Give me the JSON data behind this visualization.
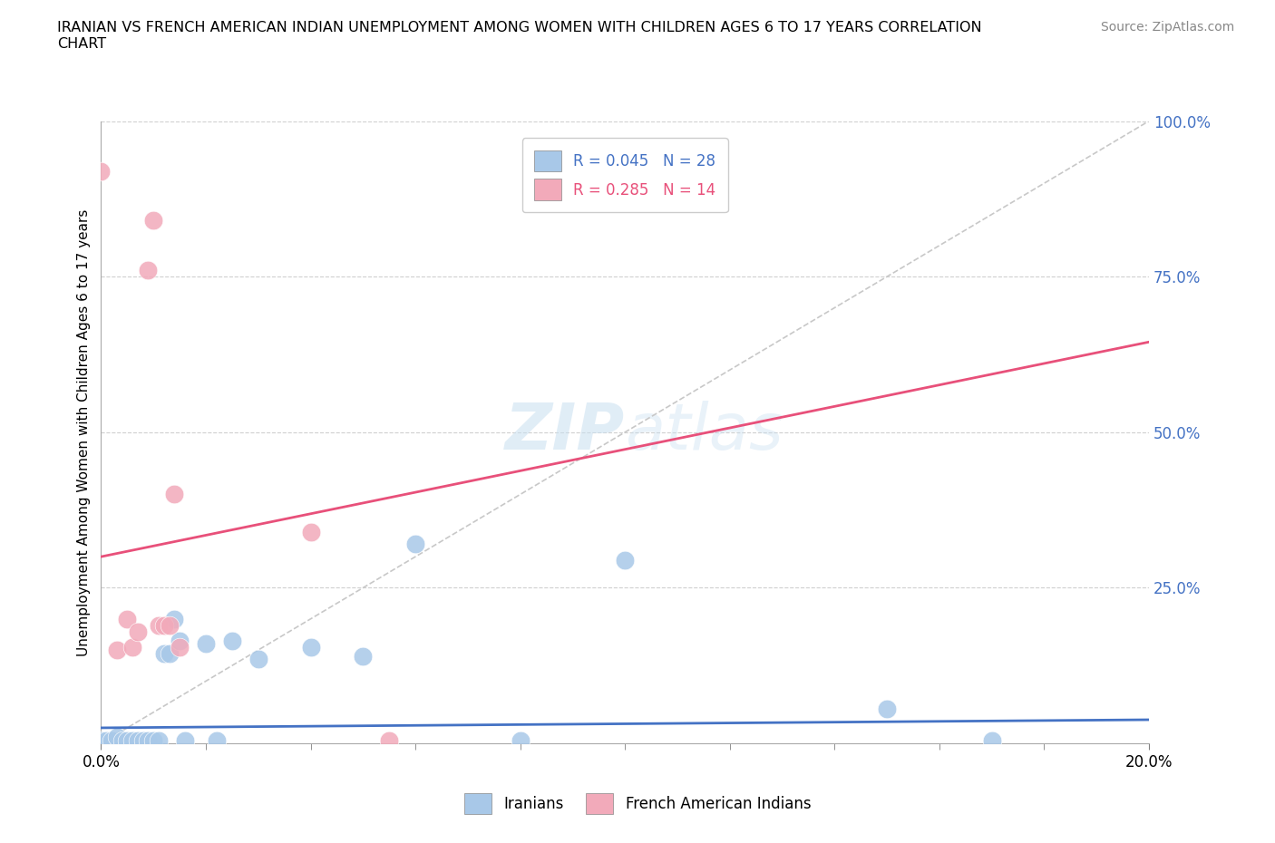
{
  "title": "IRANIAN VS FRENCH AMERICAN INDIAN UNEMPLOYMENT AMONG WOMEN WITH CHILDREN AGES 6 TO 17 YEARS CORRELATION\nCHART",
  "source": "Source: ZipAtlas.com",
  "ylabel": "Unemployment Among Women with Children Ages 6 to 17 years",
  "xmin": 0.0,
  "xmax": 0.2,
  "ymin": 0.0,
  "ymax": 1.0,
  "y_ticks": [
    0.0,
    0.25,
    0.5,
    0.75,
    1.0
  ],
  "y_tick_labels": [
    "",
    "25.0%",
    "50.0%",
    "75.0%",
    "100.0%"
  ],
  "watermark_zip": "ZIP",
  "watermark_atlas": "atlas",
  "legend_r1": "R = 0.045",
  "legend_n1": "N = 28",
  "legend_r2": "R = 0.285",
  "legend_n2": "N = 14",
  "color_iranian": "#a8c8e8",
  "color_french": "#f2aaba",
  "color_line_iranian": "#4472c4",
  "color_line_french": "#e8507a",
  "color_ref_line": "#c8c8c8",
  "iranians_x": [
    0.0,
    0.001,
    0.002,
    0.003,
    0.004,
    0.005,
    0.006,
    0.007,
    0.008,
    0.009,
    0.01,
    0.011,
    0.012,
    0.013,
    0.014,
    0.015,
    0.016,
    0.02,
    0.022,
    0.025,
    0.03,
    0.04,
    0.05,
    0.06,
    0.08,
    0.1,
    0.15,
    0.17
  ],
  "iranians_y": [
    0.005,
    0.005,
    0.005,
    0.01,
    0.005,
    0.005,
    0.005,
    0.005,
    0.005,
    0.005,
    0.005,
    0.005,
    0.145,
    0.145,
    0.2,
    0.165,
    0.005,
    0.16,
    0.005,
    0.165,
    0.135,
    0.155,
    0.14,
    0.32,
    0.005,
    0.295,
    0.055,
    0.005
  ],
  "french_x": [
    0.0,
    0.003,
    0.005,
    0.006,
    0.007,
    0.009,
    0.01,
    0.011,
    0.012,
    0.013,
    0.014,
    0.015,
    0.04,
    0.055
  ],
  "french_y": [
    0.92,
    0.15,
    0.2,
    0.155,
    0.18,
    0.76,
    0.84,
    0.19,
    0.19,
    0.19,
    0.4,
    0.155,
    0.34,
    0.005
  ],
  "french_line_x0": 0.0,
  "french_line_y0": 0.3,
  "french_line_x1": 0.2,
  "french_line_y1": 0.645,
  "iranian_line_x0": 0.0,
  "iranian_line_y0": 0.025,
  "iranian_line_x1": 0.2,
  "iranian_line_y1": 0.038
}
